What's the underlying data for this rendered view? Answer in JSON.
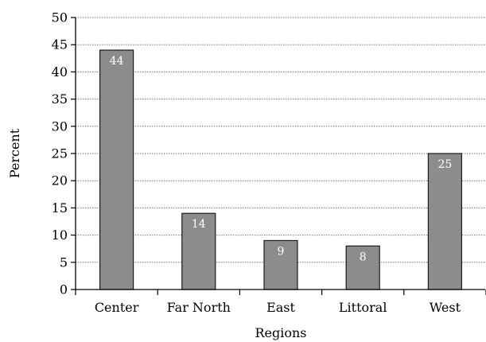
{
  "chart_data": {
    "type": "bar",
    "title": "",
    "xlabel": "Regions",
    "ylabel": "Percent",
    "categories": [
      "Center",
      "Far North",
      "East",
      "Littoral",
      "West"
    ],
    "values": [
      44,
      14,
      9,
      8,
      25
    ],
    "data_labels": [
      "44",
      "14",
      "9",
      "8",
      "25"
    ],
    "ylim": [
      0,
      50
    ],
    "yticks": [
      0,
      5,
      10,
      15,
      20,
      25,
      30,
      35,
      40,
      45,
      50
    ],
    "ytick_labels": [
      "0",
      "5",
      "10",
      "15",
      "20",
      "25",
      "30",
      "35",
      "40",
      "45",
      "50"
    ],
    "grid": "horizontal dotted",
    "legend": "none",
    "colors": {
      "bar_fill": "#8c8c8c",
      "bar_stroke": "#1a1a1a",
      "grid": "#777777",
      "axis": "#000000",
      "label": "#ffffff"
    }
  }
}
